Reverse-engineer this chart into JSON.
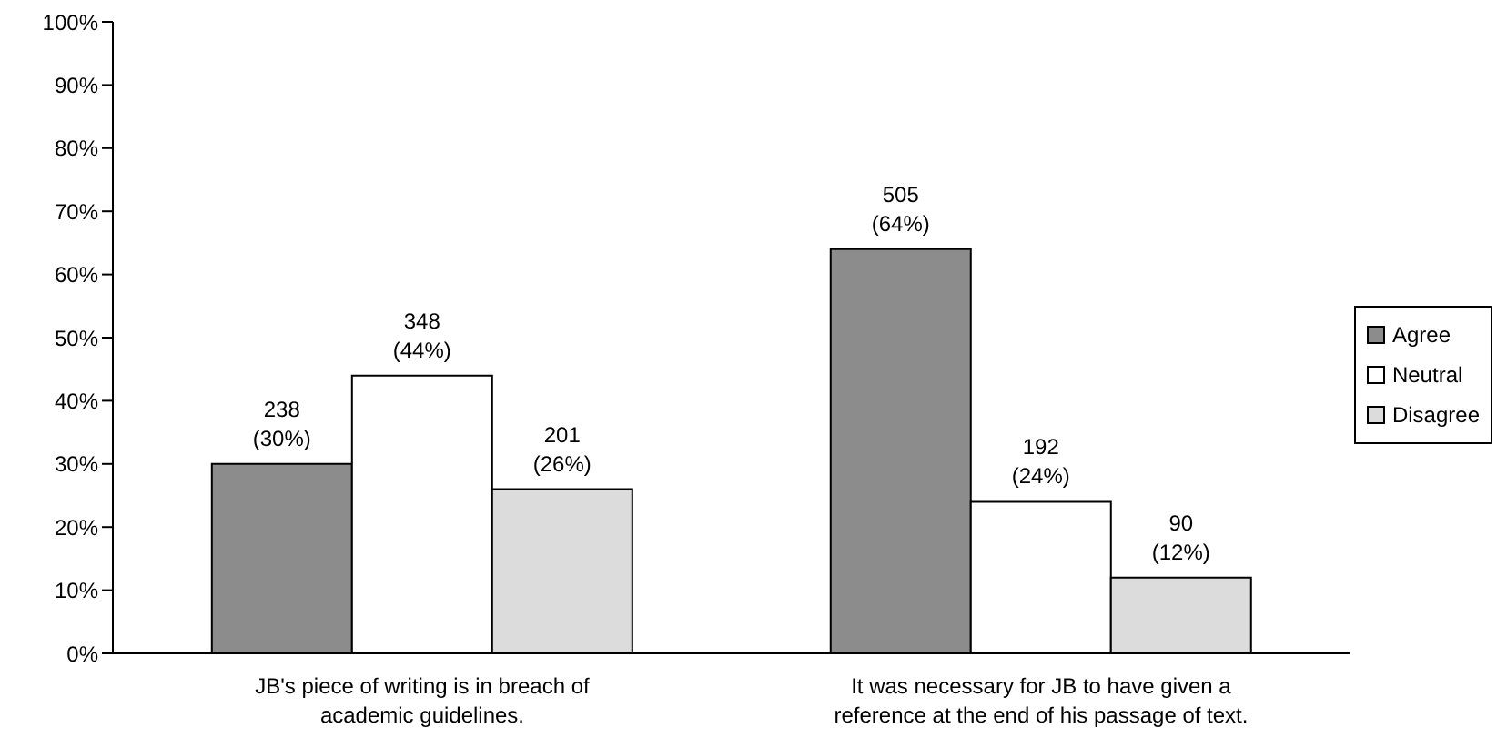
{
  "chart_data": {
    "type": "bar",
    "categories": [
      "JB's piece of writing is in breach of academic guidelines.",
      "It was necessary for JB to have given a reference at the end of his passage of text."
    ],
    "series": [
      {
        "name": "Agree",
        "color": "#8c8c8c",
        "values": [
          30,
          64
        ],
        "value_labels": [
          "238 (30%)",
          "505 (64%)"
        ]
      },
      {
        "name": "Neutral",
        "color": "#ffffff",
        "values": [
          44,
          24
        ],
        "value_labels": [
          "348 (44%)",
          "192 (24%)"
        ]
      },
      {
        "name": "Disagree",
        "color": "#dcdcdc",
        "values": [
          26,
          12
        ],
        "value_labels": [
          "201 (26%)",
          "90 (12%)"
        ]
      }
    ],
    "ylim": [
      0,
      100
    ],
    "yticks": [
      {
        "value": 0,
        "label": "0%"
      },
      {
        "value": 10,
        "label": "10%"
      },
      {
        "value": 20,
        "label": "20%"
      },
      {
        "value": 30,
        "label": "30%"
      },
      {
        "value": 40,
        "label": "40%"
      },
      {
        "value": 50,
        "label": "50%"
      },
      {
        "value": 60,
        "label": "60%"
      },
      {
        "value": 70,
        "label": "70%"
      },
      {
        "value": 80,
        "label": "80%"
      },
      {
        "value": 90,
        "label": "90%"
      },
      {
        "value": 100,
        "label": "100%"
      }
    ],
    "grid": false,
    "legend": "right"
  }
}
